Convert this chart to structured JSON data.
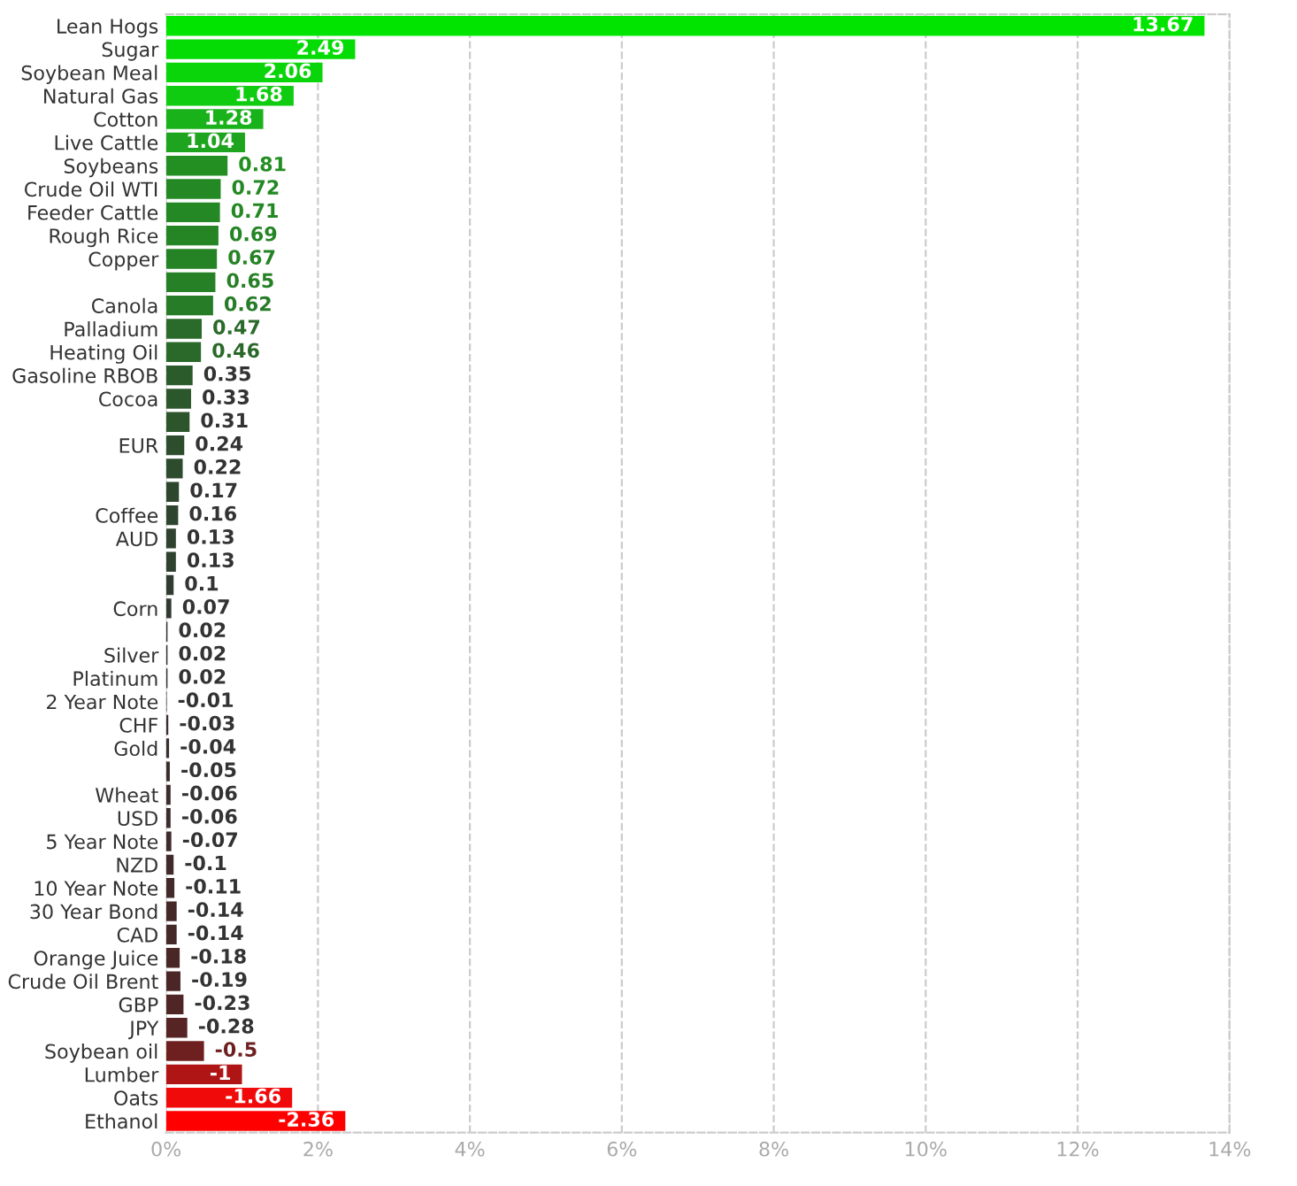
{
  "chart_data": {
    "type": "bar",
    "orientation": "horizontal",
    "categories": [
      "Lean Hogs",
      "Sugar",
      "Soybean Meal",
      "Natural Gas",
      "Cotton",
      "Live Cattle",
      "Soybeans",
      "Crude Oil WTI",
      "Feeder Cattle",
      "Rough Rice",
      "Copper",
      null,
      "Canola",
      "Palladium",
      "Heating Oil",
      "Gasoline RBOB",
      "Cocoa",
      null,
      "EUR",
      null,
      null,
      "Coffee",
      "AUD",
      null,
      null,
      "Corn",
      null,
      "Silver",
      "Platinum",
      "2 Year Note",
      "CHF",
      "Gold",
      null,
      "Wheat",
      "USD",
      "5 Year Note",
      "NZD",
      "10 Year Note",
      "30 Year Bond",
      "CAD",
      "Orange Juice",
      "Crude Oil Brent",
      "GBP",
      "JPY",
      "Soybean oil",
      "Lumber",
      "Oats",
      "Ethanol"
    ],
    "values": [
      13.67,
      2.49,
      2.06,
      1.68,
      1.28,
      1.04,
      0.81,
      0.72,
      0.71,
      0.69,
      0.67,
      0.65,
      0.62,
      0.47,
      0.46,
      0.35,
      0.33,
      0.31,
      0.24,
      0.22,
      0.17,
      0.16,
      0.13,
      0.13,
      0.1,
      0.07,
      0.02,
      0.02,
      0.02,
      -0.01,
      -0.03,
      -0.04,
      -0.05,
      -0.06,
      -0.06,
      -0.07,
      -0.1,
      -0.11,
      -0.14,
      -0.14,
      -0.18,
      -0.19,
      -0.23,
      -0.28,
      -0.5,
      -1,
      -1.66,
      -2.36
    ],
    "value_labels": [
      "13.67",
      "2.49",
      "2.06",
      "1.68",
      "1.28",
      "1.04",
      "0.81",
      "0.72",
      "0.71",
      "0.69",
      "0.67",
      "0.65",
      "0.62",
      "0.47",
      "0.46",
      "0.35",
      "0.33",
      "0.31",
      "0.24",
      "0.22",
      "0.17",
      "0.16",
      "0.13",
      "0.13",
      "0.1",
      "0.07",
      "0.02",
      "0.02",
      "0.02",
      "-0.01",
      "-0.03",
      "-0.04",
      "-0.05",
      "-0.06",
      "-0.06",
      "-0.07",
      "-0.1",
      "-0.11",
      "-0.14",
      "-0.14",
      "-0.18",
      "-0.19",
      "-0.23",
      "-0.28",
      "-0.5",
      "-1",
      "-1.66",
      "-2.36"
    ],
    "colors": [
      "#00e400",
      "#05dc05",
      "#0ad40a",
      "#10cc10",
      "#1ab21a",
      "#1fa41f",
      "#238f23",
      "#248824",
      "#248824",
      "#258525",
      "#258225",
      "#268026",
      "#277c27",
      "#2a6a2a",
      "#2a692a",
      "#2b5a2b",
      "#2c572c",
      "#2c552c",
      "#2d4d2d",
      "#2d4b2d",
      "#2e452e",
      "#2e442e",
      "#2f412f",
      "#2f412f",
      "#303c30",
      "#313a31",
      "#343434",
      "#343434",
      "#343434",
      "#383030",
      "#3a2f2f",
      "#3b2e2e",
      "#3c2d2d",
      "#3d2c2c",
      "#3d2c2c",
      "#3e2c2c",
      "#412a2a",
      "#422a2a",
      "#452828",
      "#452828",
      "#4a2727",
      "#4b2626",
      "#502525",
      "#562424",
      "#6e2020",
      "#b01515",
      "#f00a0a",
      "#ff0000"
    ],
    "xlim": [
      0,
      14
    ],
    "xticks": [
      {
        "value": 0,
        "label": "0%"
      },
      {
        "value": 2,
        "label": "2%"
      },
      {
        "value": 4,
        "label": "4%"
      },
      {
        "value": 6,
        "label": "6%"
      },
      {
        "value": 8,
        "label": "8%"
      },
      {
        "value": 10,
        "label": "10%"
      },
      {
        "value": 12,
        "label": "12%"
      },
      {
        "value": 14,
        "label": "14%"
      }
    ],
    "base": [
      0,
      0,
      0,
      0,
      0,
      0,
      0,
      0,
      0,
      0,
      0,
      0,
      0,
      0,
      0,
      0,
      0,
      0,
      0,
      0,
      0,
      0,
      0,
      0,
      0,
      0,
      0,
      0,
      0,
      0.01,
      0.03,
      0.04,
      0.05,
      0.06,
      0.06,
      0.07,
      0.1,
      0.11,
      0.14,
      0.14,
      0.18,
      0.19,
      0.23,
      0.28,
      0.5,
      1,
      1.66,
      2.36
    ],
    "grid": "x"
  }
}
